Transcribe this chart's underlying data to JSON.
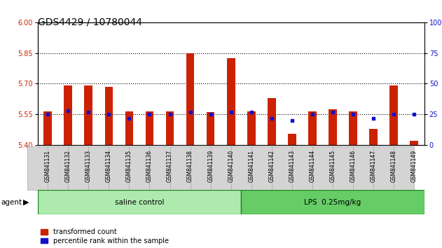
{
  "title": "GDS4429 / 10780044",
  "samples": [
    "GSM841131",
    "GSM841132",
    "GSM841133",
    "GSM841134",
    "GSM841135",
    "GSM841136",
    "GSM841137",
    "GSM841138",
    "GSM841139",
    "GSM841140",
    "GSM841141",
    "GSM841142",
    "GSM841143",
    "GSM841144",
    "GSM841145",
    "GSM841146",
    "GSM841147",
    "GSM841148",
    "GSM841149"
  ],
  "red_values": [
    5.565,
    5.69,
    5.69,
    5.685,
    5.565,
    5.565,
    5.565,
    5.85,
    5.56,
    5.825,
    5.565,
    5.63,
    5.455,
    5.565,
    5.575,
    5.565,
    5.48,
    5.69,
    5.42
  ],
  "blue_values": [
    25,
    28,
    27,
    25,
    22,
    25,
    25,
    27,
    25,
    27,
    27,
    22,
    20,
    25,
    27,
    25,
    22,
    25,
    25
  ],
  "groups": [
    {
      "label": "saline control",
      "start": 0,
      "end": 10,
      "color": "#aeeaae"
    },
    {
      "label": "LPS  0.25mg/kg",
      "start": 10,
      "end": 19,
      "color": "#66cc66"
    }
  ],
  "ylim_left": [
    5.4,
    6.0
  ],
  "ylim_right": [
    0,
    100
  ],
  "yticks_left": [
    5.4,
    5.55,
    5.7,
    5.85,
    6.0
  ],
  "yticks_right": [
    0,
    25,
    50,
    75,
    100
  ],
  "hlines": [
    5.55,
    5.7,
    5.85
  ],
  "bar_color": "#cc2200",
  "dot_color": "#1111cc",
  "bar_width": 0.4,
  "legend_red": "transformed count",
  "legend_blue": "percentile rank within the sample",
  "agent_label": "agent",
  "bg_plot": "#ffffff",
  "title_fontsize": 10,
  "tick_fontsize": 7,
  "label_fontsize": 7.5
}
